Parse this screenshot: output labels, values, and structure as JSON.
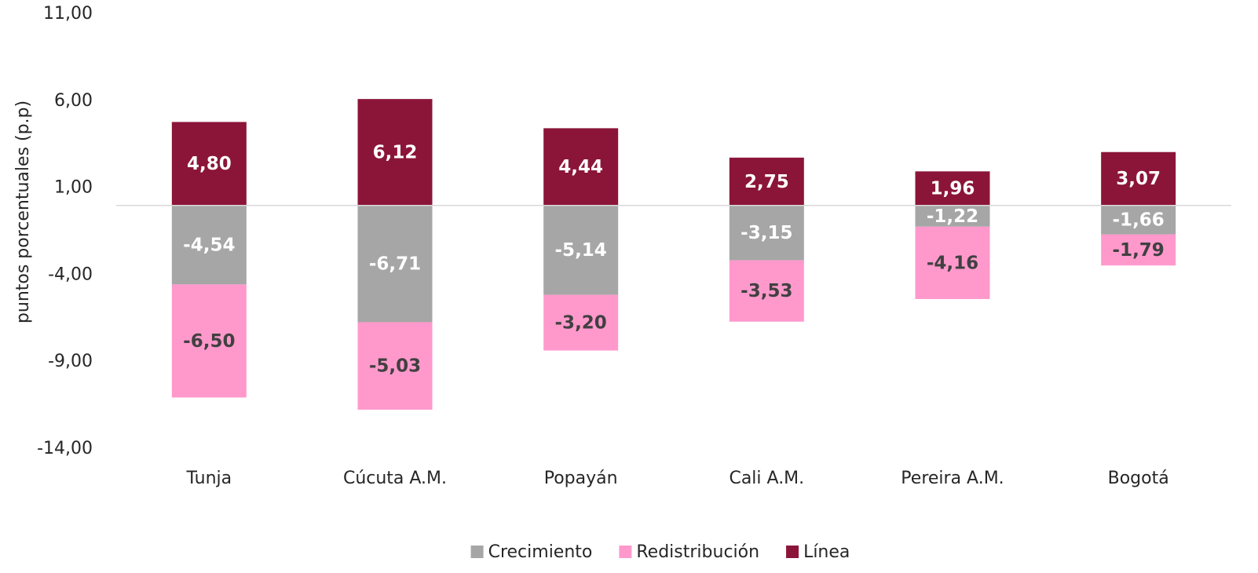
{
  "chart_data": {
    "type": "stacked_bar",
    "y_label": "puntos porcentuales (p.p)",
    "categories": [
      "Tunja",
      "Cúcuta A.M.",
      "Popayán",
      "Cali A.M.",
      "Pereira A.M.",
      "Bogotá"
    ],
    "series": [
      {
        "name": "Crecimiento",
        "color": "#a6a6a6",
        "label_color": "#ffffff",
        "values": [
          -4.54,
          -6.71,
          -5.14,
          -3.15,
          -1.22,
          -1.66
        ],
        "value_labels": [
          "-4,54",
          "-6,71",
          "-5,14",
          "-3,15",
          "-1,22",
          "-1,66"
        ]
      },
      {
        "name": "Redistribución",
        "color": "#ff99cc",
        "label_color": "#404040",
        "values": [
          -6.5,
          -5.03,
          -3.2,
          -3.53,
          -4.16,
          -1.79
        ],
        "value_labels": [
          "-6,50",
          "-5,03",
          "-3,20",
          "-3,53",
          "-4,16",
          "-1,79"
        ]
      },
      {
        "name": "Línea",
        "color": "#8b1538",
        "label_color": "#ffffff",
        "values": [
          4.8,
          6.12,
          4.44,
          2.75,
          1.96,
          3.07
        ],
        "value_labels": [
          "4,80",
          "6,12",
          "4,44",
          "2,75",
          "1,96",
          "3,07"
        ]
      }
    ],
    "ylim": [
      -14,
      11
    ],
    "yticks": [
      {
        "value": -14,
        "label": "-14,00"
      },
      {
        "value": -9,
        "label": "-9,00"
      },
      {
        "value": -4,
        "label": "-4,00"
      },
      {
        "value": 1,
        "label": "1,00"
      },
      {
        "value": 6,
        "label": "6,00"
      },
      {
        "value": 11,
        "label": "11,00"
      }
    ],
    "legend": "bottom"
  }
}
